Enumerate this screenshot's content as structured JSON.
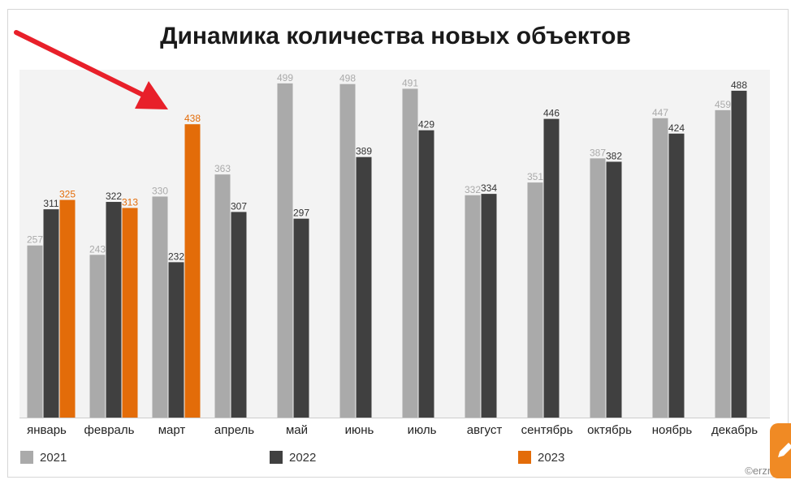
{
  "chart_data": {
    "type": "bar",
    "title": "Динамика количества новых объектов",
    "categories": [
      "январь",
      "февраль",
      "март",
      "апрель",
      "май",
      "июнь",
      "июль",
      "август",
      "сентябрь",
      "октябрь",
      "ноябрь",
      "декабрь"
    ],
    "series": [
      {
        "name": "2021",
        "color": "#aaaaaa",
        "values": [
          257,
          243,
          330,
          363,
          499,
          498,
          491,
          332,
          351,
          387,
          447,
          459
        ]
      },
      {
        "name": "2022",
        "color": "#404040",
        "values": [
          311,
          322,
          232,
          307,
          297,
          389,
          429,
          334,
          446,
          382,
          424,
          488
        ]
      },
      {
        "name": "2023",
        "color": "#e36c09",
        "values": [
          325,
          313,
          438,
          null,
          null,
          null,
          null,
          null,
          null,
          null,
          null,
          null
        ]
      }
    ],
    "ylim": [
      0,
      500
    ],
    "grid": false,
    "legend": "bottom"
  },
  "annotation": {
    "type": "arrow",
    "color": "#e8202a",
    "target": "март 2023"
  },
  "watermark": "©erzrf.ru",
  "corner_button": {
    "icon": "pencil-icon",
    "color": "#f08a24"
  }
}
